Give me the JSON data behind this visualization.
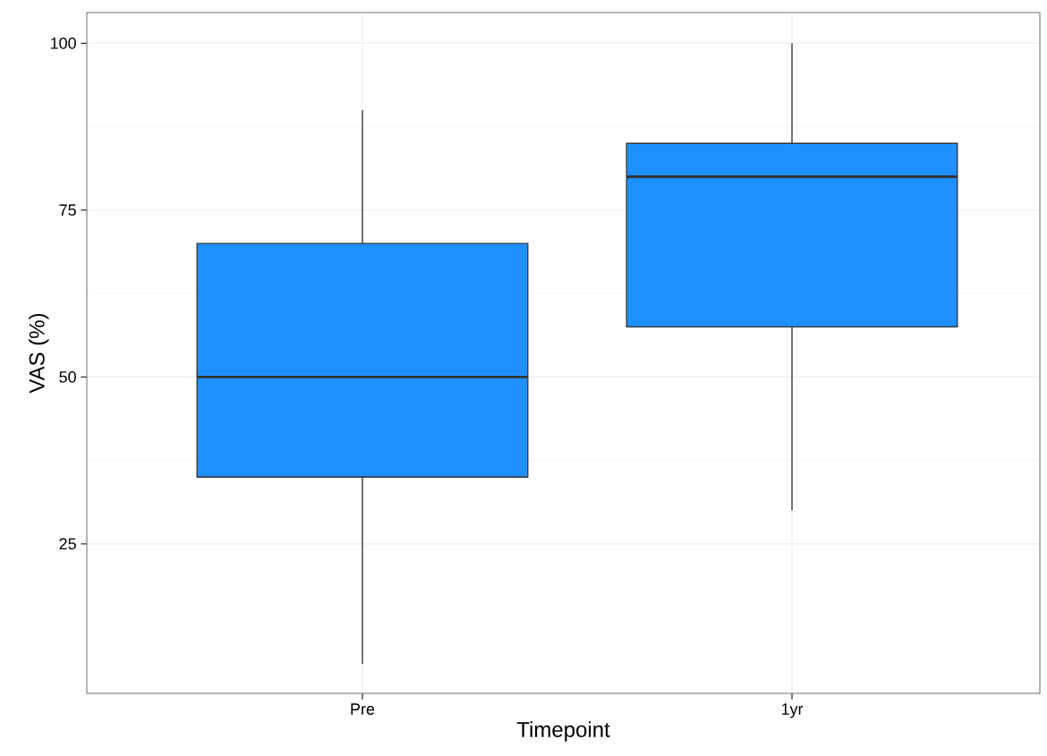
{
  "chart_data": {
    "type": "box",
    "xlabel": "Timepoint",
    "ylabel": "VAS (%)",
    "categories": [
      "Pre",
      "1yr"
    ],
    "series": [
      {
        "color": "#1e90ff",
        "boxes": [
          {
            "low": 7,
            "q1": 35,
            "median": 50,
            "q3": 70,
            "high": 90
          },
          {
            "low": 30,
            "q1": 57.5,
            "median": 80,
            "q3": 85,
            "high": 100
          }
        ]
      }
    ],
    "ylim": [
      2.6,
      104.6
    ],
    "yticks": [
      25,
      50,
      75,
      100
    ],
    "grid": true
  }
}
